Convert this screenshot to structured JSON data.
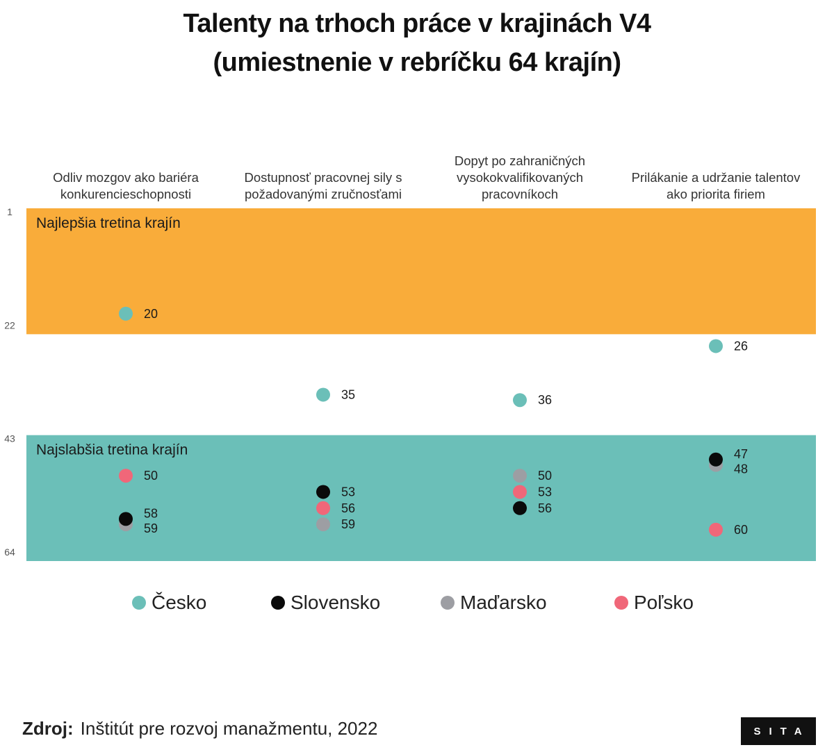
{
  "title": {
    "line1": "Talenty na trhoch práce v krajinách V4",
    "line2": "(umiestnenie v rebríčku 64 krajín)"
  },
  "chart_data": {
    "type": "scatter",
    "categories": [
      [
        "Odliv mozgov ako bariéra",
        "konkurencieschopnosti"
      ],
      [
        "Dostupnosť pracovnej sily s",
        "požadovanými zručnosťami"
      ],
      [
        "Dopyt po zahraničných",
        "vysokokvalifikovaných",
        "pracovníkoch"
      ],
      [
        "Prilákanie a udržanie talentov",
        "ako priorita firiem"
      ]
    ],
    "y_axis": {
      "reversed": true,
      "range": [
        1,
        64
      ],
      "ticks": [
        1,
        22,
        43,
        64
      ]
    },
    "bands": [
      {
        "label": "Najlepšia tretina krajín",
        "from": 1,
        "to": 22,
        "color": "#F9AC3A"
      },
      {
        "label": "Najslabšia tretina krajín",
        "from": 43,
        "to": 64,
        "color": "#6BBFB8"
      }
    ],
    "series": [
      {
        "name": "Česko",
        "color": "#6BBFB8",
        "values": [
          20,
          35,
          36,
          26
        ]
      },
      {
        "name": "Slovensko",
        "color": "#0a0a0a",
        "values": [
          58,
          53,
          56,
          47
        ]
      },
      {
        "name": "Maďarsko",
        "color": "#9d9ea3",
        "values": [
          59,
          59,
          50,
          48
        ]
      },
      {
        "name": "Poľsko",
        "color": "#F06779",
        "values": [
          50,
          56,
          53,
          60
        ]
      }
    ],
    "grid": false,
    "legend_position": "bottom"
  },
  "footer": {
    "source_label": "Zdroj:",
    "source_text": "Inštitút pre rozvoj manažmentu, 2022",
    "logo_text": "SITA"
  }
}
